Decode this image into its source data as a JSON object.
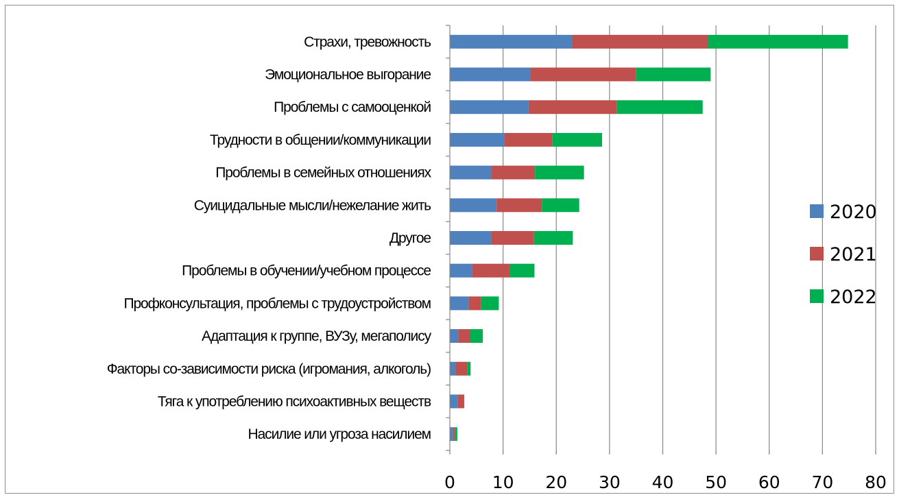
{
  "chart_data": {
    "type": "bar",
    "orientation": "horizontal",
    "stacked": true,
    "categories": [
      "Страхи, тревожность",
      "Эмоциональное выгорание",
      "Проблемы с самооценкой",
      "Трудности в общении/коммуникации",
      "Проблемы в семейных отношениях",
      "Суицидальные мысли/нежелание жить",
      "Другое",
      "Проблемы в обучении/учебном процессе",
      "Профконсультация, проблемы с трудоустройством",
      "Адаптация к группе, ВУЗу, мегаполису",
      "Факторы со-зависимости риска (игромания, алкоголь)",
      "Тяга к употреблению психоактивных веществ",
      "Насилие или угроза насилием"
    ],
    "series": [
      {
        "name": "2020",
        "color": "#4F81BD",
        "values": [
          23,
          15.2,
          14.8,
          10.3,
          7.8,
          8.8,
          7.8,
          4.2,
          3.5,
          1.6,
          1.1,
          1.5,
          0.6
        ]
      },
      {
        "name": "2021",
        "color": "#C0504D",
        "values": [
          25.5,
          19.8,
          16.6,
          9,
          8.2,
          8.5,
          8,
          7,
          2.4,
          2.2,
          2.2,
          1.2,
          0.4
        ]
      },
      {
        "name": "2022",
        "color": "#00B050",
        "values": [
          26.3,
          14,
          16.1,
          9.3,
          9.2,
          7,
          7.3,
          4.7,
          3.3,
          2.4,
          0.6,
          0,
          0.4
        ]
      }
    ],
    "xlim": [
      0,
      80
    ],
    "xticks": [
      "0",
      "10",
      "20",
      "30",
      "40",
      "50",
      "60",
      "70",
      "80"
    ],
    "grid": "vertical",
    "legend": "right"
  }
}
